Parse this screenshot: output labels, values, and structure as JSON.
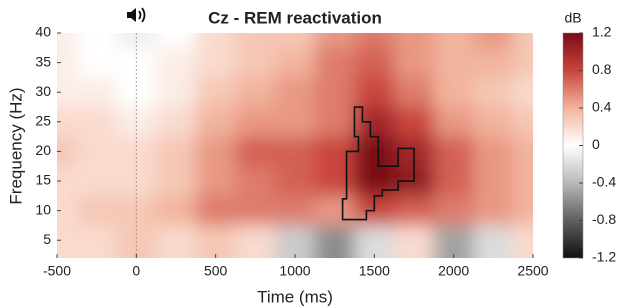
{
  "chart_data": {
    "type": "heatmap",
    "title": "Cz - REM reactivation",
    "x_label": "Time (ms)",
    "y_label": "Frequency (Hz)",
    "colorbar_label": "dB",
    "xlim": [
      -500,
      2500
    ],
    "ylim": [
      2,
      40
    ],
    "xticks": [
      -500,
      0,
      500,
      1000,
      1500,
      2000,
      2500
    ],
    "yticks": [
      5,
      10,
      15,
      20,
      25,
      30,
      35,
      40
    ],
    "clim": [
      -1.2,
      1.2
    ],
    "cticks": [
      -1.2,
      -0.8,
      -0.4,
      0,
      0.4,
      0.8,
      1.2
    ],
    "colormap": [
      {
        "value": -1.2,
        "color": "#111111"
      },
      {
        "value": -0.8,
        "color": "#5e5e5e"
      },
      {
        "value": -0.4,
        "color": "#b9b9b9"
      },
      {
        "value": 0,
        "color": "#ffffff"
      },
      {
        "value": 0.4,
        "color": "#f2b49c"
      },
      {
        "value": 0.8,
        "color": "#c9443c"
      },
      {
        "value": 1.2,
        "color": "#7a0c18"
      }
    ],
    "event_line": 0,
    "x": [
      -500,
      -250,
      0,
      250,
      500,
      750,
      1000,
      1250,
      1500,
      1750,
      2000,
      2250,
      2500
    ],
    "y": [
      40,
      35,
      30,
      25,
      20,
      15,
      10,
      5
    ],
    "z": [
      [
        0.1,
        0,
        -0.1,
        0,
        0.2,
        0.3,
        0.3,
        0.5,
        0.6,
        0.5,
        0.4,
        0.5,
        0.3
      ],
      [
        0.1,
        0,
        0,
        0.1,
        0.2,
        0.3,
        0.4,
        0.6,
        0.7,
        0.5,
        0.4,
        0.4,
        0.3
      ],
      [
        0.1,
        0.1,
        0,
        0.1,
        0.3,
        0.4,
        0.5,
        0.6,
        0.8,
        0.6,
        0.4,
        0.3,
        0.2
      ],
      [
        0.2,
        0.2,
        0.1,
        0.2,
        0.4,
        0.5,
        0.5,
        0.6,
        1.0,
        0.8,
        0.5,
        0.4,
        0.3
      ],
      [
        0.3,
        0.2,
        0.2,
        0.3,
        0.5,
        0.7,
        0.7,
        0.8,
        1.2,
        1.0,
        0.7,
        0.5,
        0.4
      ],
      [
        0.2,
        0.2,
        0.2,
        0.3,
        0.5,
        0.6,
        0.7,
        0.8,
        1.2,
        1.1,
        0.7,
        0.5,
        0.4
      ],
      [
        0.2,
        0.3,
        0.3,
        0.4,
        0.6,
        0.6,
        0.6,
        0.5,
        0.8,
        0.7,
        0.6,
        0.5,
        0.4
      ],
      [
        0.2,
        0.2,
        0.3,
        0.2,
        0.3,
        0.2,
        -0.3,
        -0.6,
        -0.2,
        0.2,
        -0.5,
        -0.2,
        0.2
      ]
    ],
    "cluster": {
      "x": [
        1375,
        1425,
        1425,
        1475,
        1475,
        1525,
        1525,
        1650,
        1650,
        1750,
        1750,
        1650,
        1650,
        1550,
        1550,
        1500,
        1500,
        1450,
        1450,
        1300,
        1300,
        1325,
        1325,
        1400,
        1400,
        1375
      ],
      "y": [
        27.5,
        27.5,
        25,
        25,
        22.5,
        22.5,
        17.5,
        17.5,
        20.5,
        20.5,
        15,
        15,
        13.5,
        13.5,
        12.5,
        12.5,
        10,
        10,
        8.5,
        8.5,
        12,
        12,
        20,
        20,
        22.5,
        22.5
      ]
    }
  }
}
